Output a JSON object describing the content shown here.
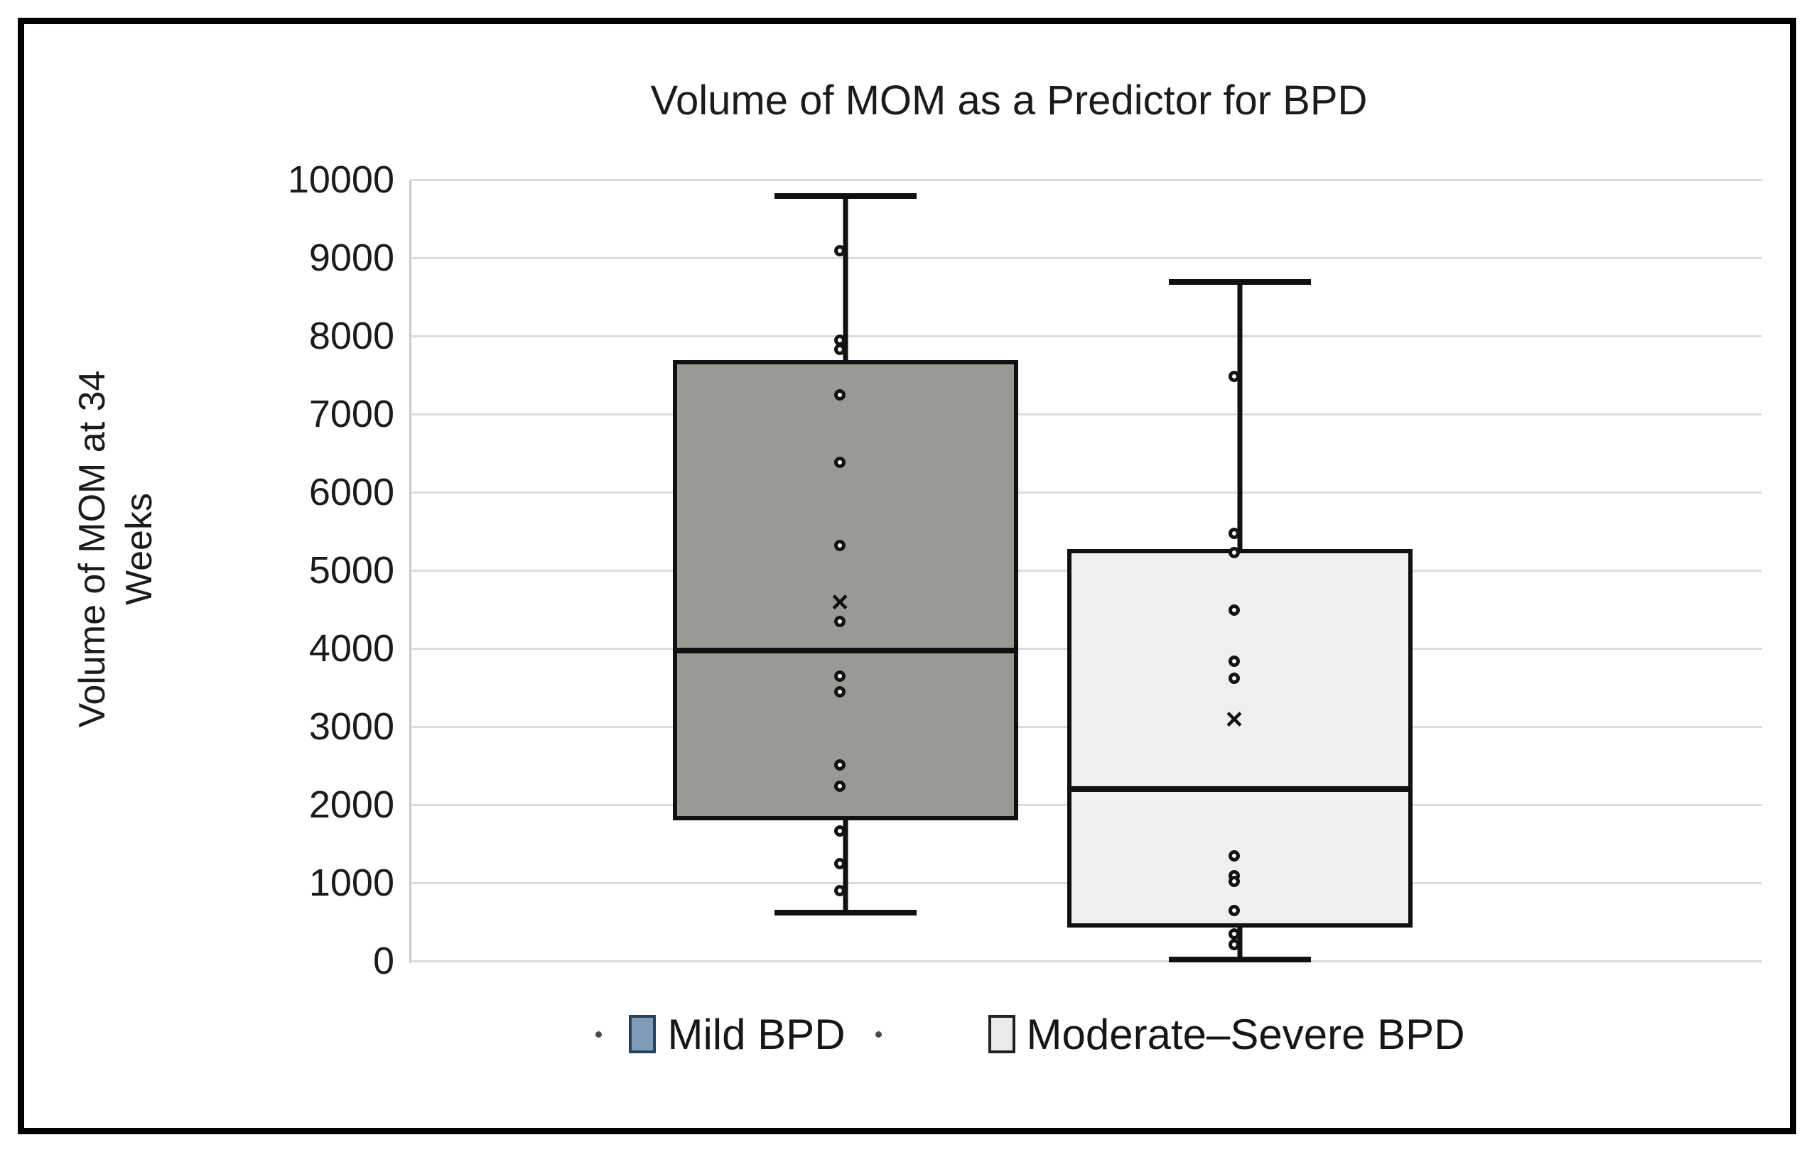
{
  "title": "Volume of MOM as a Predictor for BPD",
  "y_axis": {
    "title": "Volume of MOM at 34 Weeks",
    "ticks": [
      "10000",
      "9000",
      "8000",
      "7000",
      "6000",
      "5000",
      "4000",
      "3000",
      "2000",
      "1000",
      "0"
    ]
  },
  "legend": [
    {
      "label": "Mild BPD",
      "swatch_fill": "#7e9bb7",
      "swatch_border": "#27425f"
    },
    {
      "label": "Moderate–Severe BPD",
      "swatch_fill": "#eaeaea",
      "swatch_border": "#222222"
    }
  ],
  "colors": {
    "mild_box_fill": "#989b94",
    "moderate_box_fill": "#efefef",
    "box_border": "#111111",
    "gridline": "#dcdcdc",
    "figure_border": "#000000",
    "marker": "#131313"
  },
  "chart_data": {
    "type": "boxplot",
    "title": "Volume of MOM as a Predictor for BPD",
    "ylabel": "Volume of MOM at 34 Weeks",
    "xlabel": "",
    "ylim": [
      0,
      10000
    ],
    "ytick_step": 1000,
    "grid": true,
    "legend_position": "bottom",
    "series": [
      {
        "name": "Mild BPD",
        "box_fill": "#989b94",
        "min": 620,
        "q1": 1800,
        "median": 3970,
        "q3": 7690,
        "max": 9790,
        "mean": 4580,
        "points": [
          9090,
          7950,
          7830,
          7250,
          6380,
          5320,
          4350,
          3650,
          3450,
          2510,
          2240,
          1660,
          1250,
          900
        ]
      },
      {
        "name": "Moderate–Severe BPD",
        "box_fill": "#efefef",
        "min": 20,
        "q1": 430,
        "median": 2200,
        "q3": 5270,
        "max": 8690,
        "mean": 3080,
        "points": [
          7480,
          5470,
          5230,
          4490,
          3840,
          3620,
          1350,
          1090,
          1020,
          650,
          350,
          210
        ]
      }
    ]
  }
}
